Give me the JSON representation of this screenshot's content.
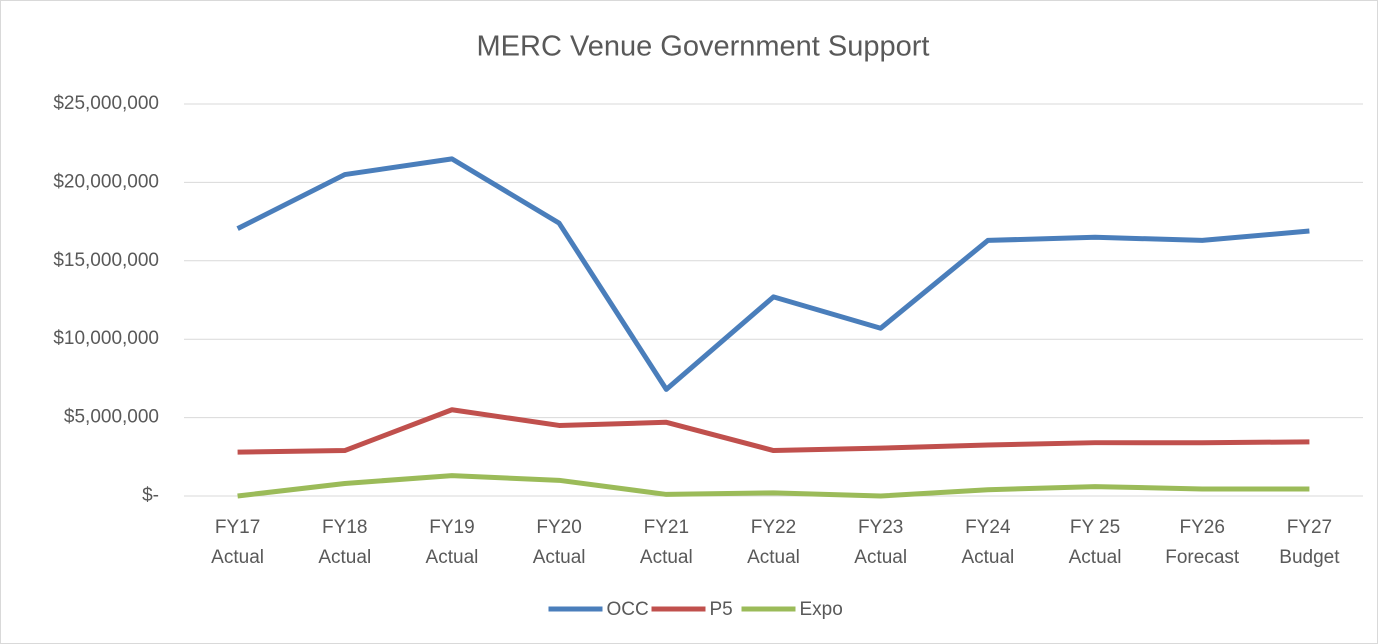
{
  "chart_data": {
    "type": "line",
    "title": "MERC Venue Government Support",
    "categories": [
      "FY17 Actual",
      "FY18 Actual",
      "FY19 Actual",
      "FY20 Actual",
      "FY21 Actual",
      "FY22 Actual",
      "FY23 Actual",
      "FY24 Actual",
      "FY 25 Actual",
      "FY26 Forecast",
      "FY27 Budget"
    ],
    "series": [
      {
        "name": "OCC",
        "color": "#4a7ebb",
        "values": [
          17050000,
          20500000,
          21500000,
          17400000,
          6800000,
          12700000,
          10700000,
          16300000,
          16500000,
          16300000,
          16900000
        ]
      },
      {
        "name": "P5",
        "color": "#c0504d",
        "values": [
          2800000,
          2900000,
          5500000,
          4500000,
          4700000,
          2900000,
          3050000,
          3250000,
          3400000,
          3400000,
          3450000
        ]
      },
      {
        "name": "Expo",
        "color": "#9bbb59",
        "values": [
          0,
          800000,
          1300000,
          1000000,
          100000,
          200000,
          0,
          400000,
          600000,
          450000,
          450000
        ]
      }
    ],
    "ylim": [
      0,
      25000000
    ],
    "yticks": [
      {
        "value": 0,
        "label": "$-"
      },
      {
        "value": 5000000,
        "label": "$5,000,000"
      },
      {
        "value": 10000000,
        "label": "$10,000,000"
      },
      {
        "value": 15000000,
        "label": "$15,000,000"
      },
      {
        "value": 20000000,
        "label": "$20,000,000"
      },
      {
        "value": 25000000,
        "label": "$25,000,000"
      }
    ],
    "grid": true,
    "legend": "bottom"
  }
}
